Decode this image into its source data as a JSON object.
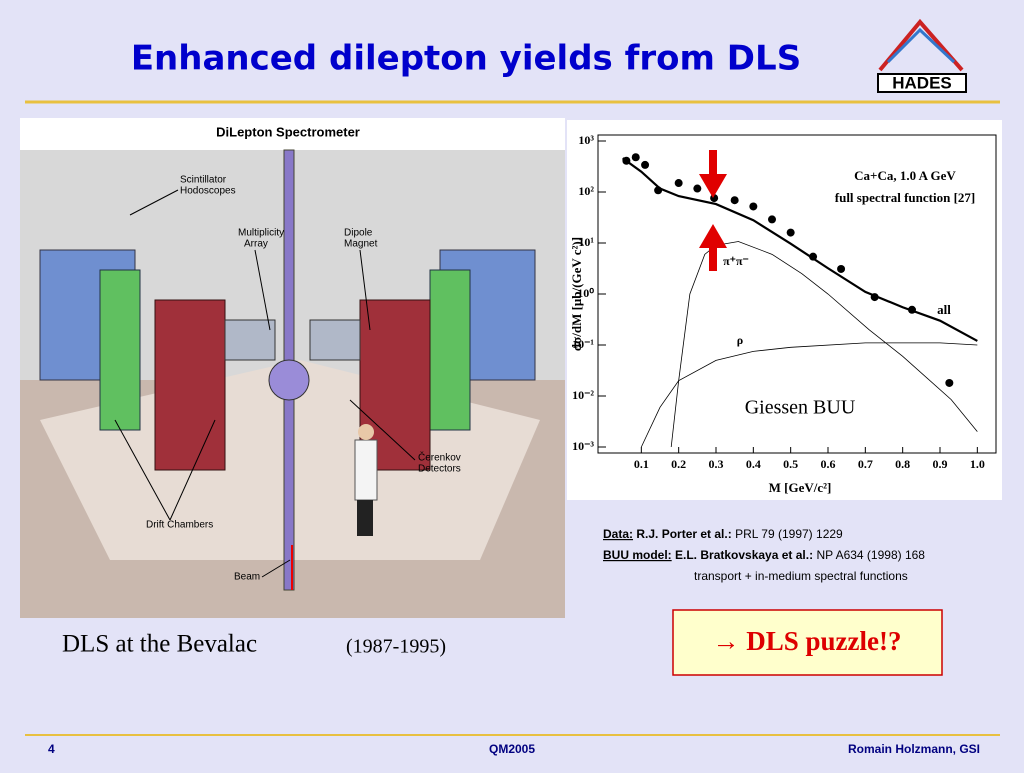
{
  "title": "Enhanced dilepton yields from DLS",
  "logo": "HADES",
  "figure": {
    "title": "DiLepton Spectrometer",
    "labels": [
      "Scintillator",
      "Hodoscopes",
      "Multiplicity",
      "Array",
      "Dipole",
      "Magnet",
      "Čerenkov",
      "Detectors",
      "Drift Chambers",
      "Beam"
    ]
  },
  "figure_caption": "DLS at the Bevalac",
  "figure_years": "(1987-1995)",
  "plot": {
    "type": "scatter",
    "xlabel": "M [GeV/c²]",
    "ylabel": "dσ/dM  [μb/(GeV c²)]",
    "annotations": [
      "Ca+Ca,  1.0 A GeV",
      "full spectral function [27]",
      "π⁺π⁻",
      "ρ",
      "all",
      "Giessen BUU"
    ],
    "x": [
      0.06,
      0.085,
      0.11,
      0.145,
      0.2,
      0.25,
      0.295,
      0.35,
      0.4,
      0.45,
      0.5,
      0.56,
      0.635,
      0.725,
      0.825,
      0.925
    ],
    "y": [
      410,
      480,
      340,
      108,
      150,
      117,
      76,
      69,
      52,
      29,
      16,
      5.4,
      3.1,
      0.87,
      0.49,
      0.018
    ],
    "color": "#000000",
    "curves": [
      {
        "name": "all",
        "x": [
          0.05,
          0.1,
          0.15,
          0.2,
          0.3,
          0.4,
          0.5,
          0.6,
          0.7,
          0.8,
          0.9,
          1.0
        ],
        "y": [
          460,
          250,
          117,
          83,
          58,
          28,
          9.7,
          3.2,
          1.1,
          0.55,
          0.3,
          0.12
        ]
      },
      {
        "name": "π⁺π⁻",
        "x": [
          0.18,
          0.2,
          0.23,
          0.27,
          0.3,
          0.36,
          0.45,
          0.53,
          0.6,
          0.71,
          0.8,
          0.93,
          1.0
        ],
        "y": [
          0.001,
          0.02,
          1,
          6,
          9,
          10.7,
          6,
          2.5,
          1,
          0.2,
          0.06,
          0.0085,
          0.002
        ]
      },
      {
        "name": "ρ",
        "x": [
          0.1,
          0.15,
          0.2,
          0.3,
          0.4,
          0.5,
          0.7,
          0.9,
          1.0
        ],
        "y": [
          0.001,
          0.006,
          0.02,
          0.05,
          0.075,
          0.09,
          0.11,
          0.11,
          0.1
        ]
      }
    ],
    "xlim": [
      0,
      1.05
    ],
    "xticks": [
      0.1,
      0.2,
      0.3,
      0.4,
      0.5,
      0.6,
      0.7,
      0.8,
      0.9,
      {
        "value": 1,
        "label": "1.0"
      }
    ],
    "ylim": [
      0.001,
      1000
    ],
    "ylog": true,
    "yticks": [
      {
        "value": 1000,
        "label": "10³"
      },
      {
        "value": 100,
        "label": "10²"
      },
      {
        "value": 10,
        "label": "10¹"
      },
      {
        "value": 1,
        "label": "10⁰"
      },
      {
        "value": 0.1,
        "label": "10⁻¹"
      },
      {
        "value": 0.01,
        "label": "10⁻²"
      },
      {
        "value": 0.001,
        "label": "10⁻³"
      }
    ]
  },
  "references": [
    {
      "label": "Data:",
      "authors": "R.J. Porter et al.:",
      "citation": "PRL 79 (1997) 1229"
    },
    {
      "label": "BUU model:",
      "authors": "E.L. Bratkovskaya et al.:",
      "citation": "NP A634 (1998) 168"
    }
  ],
  "note": "transport  + in-medium spectral functions",
  "puzzle": "→ DLS puzzle!?",
  "footer": {
    "page": "4",
    "conference": "QM2005",
    "author": "Romain Holzmann, GSI"
  }
}
